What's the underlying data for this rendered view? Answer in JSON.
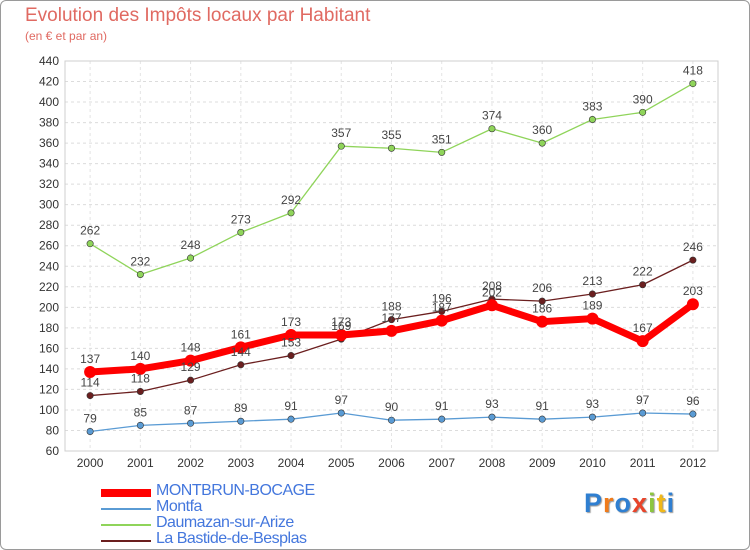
{
  "chart_data": {
    "type": "line",
    "title": "Evolution des Impôts locaux par Habitant",
    "subtitle": "(en € et par an)",
    "xlabel": "",
    "ylabel": "",
    "x": [
      "2000",
      "2001",
      "2002",
      "2003",
      "2004",
      "2005",
      "2006",
      "2007",
      "2008",
      "2009",
      "2010",
      "2011",
      "2012"
    ],
    "ylim": [
      60,
      440
    ],
    "yticks": [
      60,
      80,
      100,
      120,
      140,
      160,
      180,
      200,
      220,
      240,
      260,
      280,
      300,
      320,
      340,
      360,
      380,
      400,
      420,
      440
    ],
    "grid": true,
    "legend_position": "bottom-left",
    "series": [
      {
        "name": "MONTBRUN-BOCAGE",
        "color": "#ff0000",
        "values": [
          137,
          140,
          148,
          161,
          173,
          173,
          177,
          187,
          202,
          186,
          189,
          167,
          203
        ]
      },
      {
        "name": "Montfa",
        "color": "#5a9bd4",
        "values": [
          79,
          85,
          87,
          89,
          91,
          97,
          90,
          91,
          93,
          91,
          93,
          97,
          96
        ]
      },
      {
        "name": "Daumazan-sur-Arize",
        "color": "#8fd45a",
        "values": [
          262,
          232,
          248,
          273,
          292,
          357,
          355,
          351,
          374,
          360,
          383,
          390,
          418
        ]
      },
      {
        "name": "La Bastide-de-Besplas",
        "color": "#6b1f1f",
        "values": [
          114,
          118,
          129,
          144,
          153,
          169,
          188,
          196,
          208,
          206,
          213,
          222,
          246
        ]
      }
    ]
  },
  "logo": {
    "text": "Proxiti"
  }
}
